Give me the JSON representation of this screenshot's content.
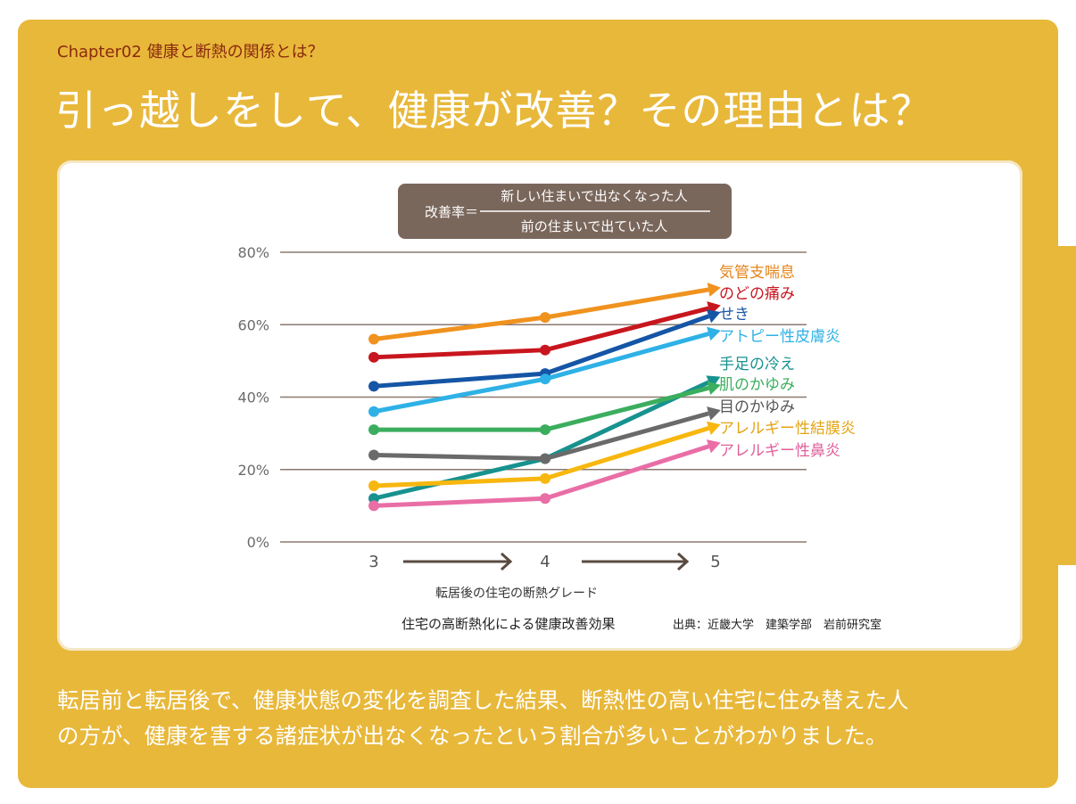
{
  "chapter_label": "Chapter02 健康と断熱の関係とは？",
  "page_title": "引っ越しをして、健康が改善？その理由とは？",
  "body_lines": [
    "転居前と転居後で、健康状態の変化を調査した結果、断熱性の高い住宅に住み替えた人",
    "の方が、健康を害する諸症状が出なくなったという割合が多いことがわかりました。"
  ],
  "colors": {
    "panel": "#E8B83A",
    "chapter_text": "#8B2A0E",
    "formula_box": "#7A675C"
  },
  "chart_data": {
    "type": "line",
    "formula": {
      "label": "改善率＝",
      "numerator": "新しい住まいで出なくなった人",
      "denominator": "前の住まいで出ていた人"
    },
    "x": [
      3,
      4,
      5
    ],
    "xlabel": "転居後の住宅の断熱グレード",
    "ylabel": "",
    "y_ticks": [
      "0%",
      "20%",
      "40%",
      "60%",
      "80%"
    ],
    "ylim": [
      0,
      80
    ],
    "caption": "住宅の高断熱化による健康改善効果",
    "source": "出典：近畿大学　建築学部　岩前研究室",
    "grid": true,
    "series": [
      {
        "name": "気管支喘息",
        "values": [
          56,
          62,
          70
        ],
        "color": "#F0921E"
      },
      {
        "name": "のどの痛み",
        "values": [
          51,
          53,
          65
        ],
        "color": "#C8161E"
      },
      {
        "name": "せき",
        "values": [
          43,
          46.5,
          63
        ],
        "color": "#1555A5"
      },
      {
        "name": "アトピー性皮膚炎",
        "values": [
          36,
          45,
          58
        ],
        "color": "#2EB1E6"
      },
      {
        "name": "手足の冷え",
        "values": [
          12,
          23,
          45
        ],
        "color": "#17928F"
      },
      {
        "name": "肌のかゆみ",
        "values": [
          31,
          31,
          43
        ],
        "color": "#3BAE5E"
      },
      {
        "name": "目のかゆみ",
        "values": [
          24,
          23,
          36
        ],
        "color": "#6A6A6A"
      },
      {
        "name": "アレルギー性結膜炎",
        "values": [
          15.5,
          17.5,
          32
        ],
        "color": "#F7B70F"
      },
      {
        "name": "アレルギー性鼻炎",
        "values": [
          10,
          12,
          27
        ],
        "color": "#E96EA6"
      }
    ],
    "label_colors": [
      "#E5841A",
      "#C8161E",
      "#1555A5",
      "#2EB1E6",
      "#17928F",
      "#3BAE5E",
      "#555555",
      "#E3A412",
      "#E05E9A"
    ]
  }
}
